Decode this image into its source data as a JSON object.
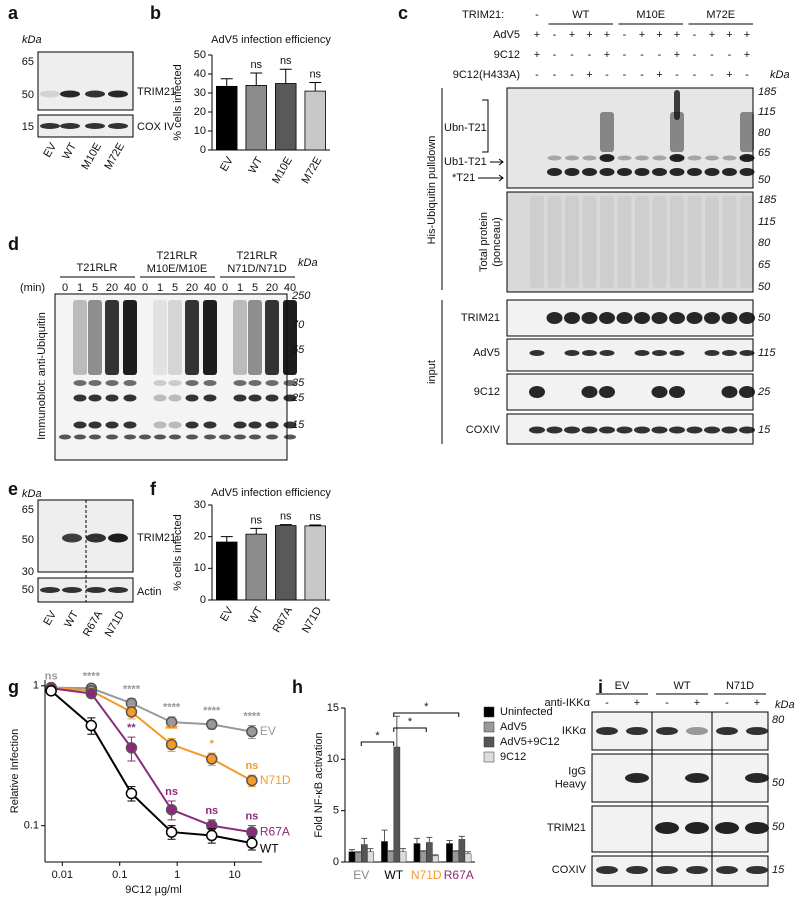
{
  "panel_labels": [
    "a",
    "b",
    "c",
    "d",
    "e",
    "f",
    "g",
    "h",
    "i"
  ],
  "blot_a": {
    "unit": "kDa",
    "markers": [
      65,
      50,
      15
    ],
    "proteins": [
      "TRIM21",
      "COX IV"
    ],
    "lanes": [
      "EV",
      "WT",
      "M10E",
      "M72E"
    ]
  },
  "blot_c": {
    "header_label": "TRIM21:",
    "groups": [
      "-",
      "WT",
      "M10E",
      "M72E"
    ],
    "treatments": [
      {
        "name": "AdV5",
        "signs": [
          "+",
          "-",
          "+",
          "+",
          "+",
          "-",
          "+",
          "+",
          "+",
          "-",
          "+",
          "+",
          "+"
        ]
      },
      {
        "name": "9C12",
        "signs": [
          "+",
          "-",
          "-",
          "-",
          "+",
          "-",
          "-",
          "-",
          "+",
          "-",
          "-",
          "-",
          "+"
        ]
      },
      {
        "name": "9C12(H433A)",
        "signs": [
          "-",
          "-",
          "-",
          "+",
          "-",
          "-",
          "-",
          "+",
          "-",
          "-",
          "-",
          "+",
          "-"
        ]
      }
    ],
    "unit": "kDa",
    "pulldown": {
      "title": "His-Ubiquitin pulldown",
      "band_labels": [
        "Ubn-T21",
        "Ub1-T21",
        "*T21"
      ],
      "markers": [
        185,
        115,
        80,
        65,
        50
      ]
    },
    "ponceau": {
      "title_lines": [
        "Total protein",
        "(ponceau)"
      ],
      "markers": [
        185,
        115,
        80,
        65,
        50
      ]
    },
    "input": {
      "title": "input",
      "rows": [
        {
          "label": "TRIM21",
          "marker": 50
        },
        {
          "label": "AdV5",
          "marker": 115
        },
        {
          "label": "9C12",
          "marker": 25
        },
        {
          "label": "COXIV",
          "marker": 15
        }
      ]
    }
  },
  "blot_d": {
    "groups": [
      [
        "T21RLR"
      ],
      [
        "T21RLR",
        "M10E/M10E"
      ],
      [
        "T21RLR",
        "N71D/N71D"
      ]
    ],
    "time_label": "(min)",
    "times": [
      0,
      1,
      5,
      20,
      40
    ],
    "unit": "kDa",
    "markers": [
      250,
      70,
      55,
      35,
      25,
      15
    ],
    "ylabel": "Immunoblot: anti-Ubiquitin"
  },
  "blot_e": {
    "unit": "kDa",
    "markers": [
      65,
      50,
      30,
      50
    ],
    "proteins": [
      "TRIM21",
      "Actin"
    ],
    "lanes": [
      "EV",
      "WT",
      "R67A",
      "N71D"
    ]
  },
  "blot_i": {
    "groups": [
      "EV",
      "WT",
      "N71D"
    ],
    "treatment": "anti-IKKα",
    "signs": [
      "-",
      "+",
      "-",
      "+",
      "-",
      "+"
    ],
    "unit": "kDa",
    "rows": [
      {
        "label": [
          "IKKα"
        ],
        "marker": 80
      },
      {
        "label": [
          "IgG",
          "Heavy"
        ],
        "marker": 50
      },
      {
        "label": [
          "TRIM21"
        ],
        "marker": 50
      },
      {
        "label": [
          "COXIV"
        ],
        "marker": 15
      }
    ]
  },
  "chart_data": [
    {
      "type": "bar",
      "title": "AdV5 infection efficiency",
      "ylabel": "% cells infected",
      "categories": [
        "EV",
        "WT",
        "M10E",
        "M72E"
      ],
      "values": [
        33.5,
        34,
        35,
        31
      ],
      "errors": [
        4,
        6.5,
        7.5,
        4.5
      ],
      "colors": [
        "#000000",
        "#8c8c8c",
        "#595959",
        "#c8c8c8"
      ],
      "annotations": [
        null,
        "ns",
        "ns",
        "ns"
      ],
      "ylim": [
        0,
        50
      ],
      "yticks": [
        0,
        10,
        20,
        30,
        40,
        50
      ]
    },
    {
      "type": "bar",
      "title": "AdV5 infection efficiency",
      "ylabel": "% cells infected",
      "categories": [
        "EV",
        "WT",
        "R67A",
        "N71D"
      ],
      "values": [
        18.3,
        20.8,
        23.5,
        23.4
      ],
      "errors": [
        1.7,
        1.8,
        0.3,
        0.3
      ],
      "colors": [
        "#000000",
        "#8c8c8c",
        "#595959",
        "#c8c8c8"
      ],
      "annotations": [
        null,
        "ns",
        "ns",
        "ns"
      ],
      "ylim": [
        0,
        30
      ],
      "yticks": [
        0,
        10,
        20,
        30
      ]
    },
    {
      "type": "line",
      "xlabel": "9C12 µg/ml",
      "ylabel": "Relative Infection",
      "log_scale": true,
      "x": [
        0.0064,
        0.032,
        0.16,
        0.8,
        4,
        20
      ],
      "xlim": [
        0.005,
        30
      ],
      "xticks": [
        0.01,
        0.1,
        1,
        10
      ],
      "ylim": [
        0.055,
        1.1
      ],
      "yticks": [
        0.1,
        1
      ],
      "series": [
        {
          "name": "EV",
          "color": "#999999",
          "marker": "filled",
          "values": [
            0.97,
            0.96,
            0.75,
            0.55,
            0.53,
            0.47
          ],
          "errors": [
            0.03,
            0.04,
            0.06,
            0.05,
            0.04,
            0.05
          ],
          "significance": [
            "ns",
            "****",
            "****",
            "****",
            "****",
            "****"
          ]
        },
        {
          "name": "N71D",
          "color": "#f39a2b",
          "marker": "filled",
          "values": [
            0.97,
            0.92,
            0.65,
            0.38,
            0.3,
            0.21
          ],
          "errors": [
            0.03,
            0.05,
            0.07,
            0.04,
            0.03,
            0.02
          ],
          "significance": [
            null,
            null,
            null,
            "***",
            "*",
            "ns"
          ]
        },
        {
          "name": "R67A",
          "color": "#8b2a7a",
          "marker": "filled",
          "values": [
            0.96,
            0.88,
            0.36,
            0.13,
            0.1,
            0.09
          ],
          "errors": [
            0.03,
            0.05,
            0.07,
            0.02,
            0.01,
            0.01
          ],
          "significance": [
            null,
            null,
            "**",
            "ns",
            "ns",
            "ns"
          ]
        },
        {
          "name": "WT",
          "color": "#000000",
          "marker": "open",
          "values": [
            0.92,
            0.52,
            0.17,
            0.09,
            0.085,
            0.075
          ],
          "errors": [
            0.03,
            0.07,
            0.02,
            0.01,
            0.01,
            0.008
          ],
          "significance": [
            null,
            null,
            null,
            null,
            null,
            null
          ]
        }
      ]
    },
    {
      "type": "grouped_bar",
      "ylabel": "Fold NF-κB activation",
      "categories": [
        "EV",
        "WT",
        "N71D",
        "R67A"
      ],
      "category_colors": [
        "#888888",
        "#000000",
        "#f39a2b",
        "#8b2a7a"
      ],
      "ylim": [
        0,
        15
      ],
      "yticks": [
        0,
        5,
        10,
        15
      ],
      "series": [
        {
          "name": "Uninfected",
          "color": "#000000",
          "values": [
            1.0,
            2.0,
            1.8,
            1.8
          ],
          "errors": [
            0.2,
            1.1,
            0.5,
            0.3
          ]
        },
        {
          "name": "AdV5",
          "color": "#999999",
          "values": [
            0.9,
            1.0,
            1.0,
            1.0
          ],
          "errors": [
            0.1,
            0.1,
            0.1,
            0.1
          ]
        },
        {
          "name": "AdV5+9C12",
          "color": "#555555",
          "values": [
            1.7,
            11.2,
            1.9,
            2.2
          ],
          "errors": [
            0.6,
            3.0,
            0.5,
            0.3
          ]
        },
        {
          "name": "9C12",
          "color": "#dddddd",
          "values": [
            1.0,
            1.0,
            0.6,
            0.8
          ],
          "errors": [
            0.3,
            0.3,
            0.1,
            0.2
          ]
        }
      ],
      "brackets": [
        {
          "categories": [
            "WT",
            "R67A"
          ],
          "label": "*"
        },
        {
          "categories": [
            "WT",
            "N71D"
          ],
          "label": "*"
        },
        {
          "categories": [
            "EV",
            "WT"
          ],
          "label": "*"
        }
      ]
    }
  ]
}
